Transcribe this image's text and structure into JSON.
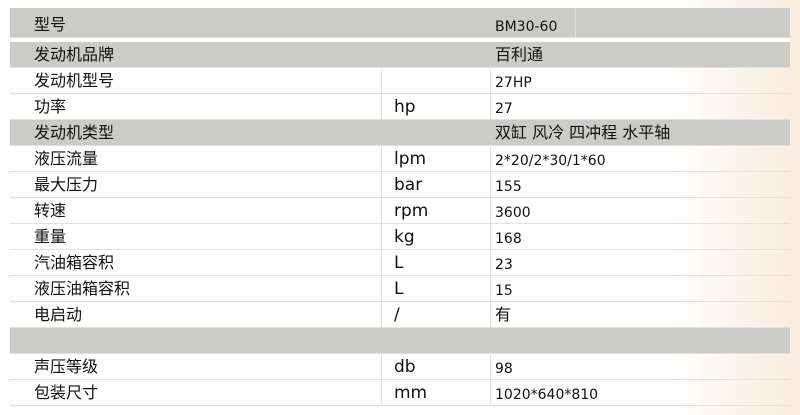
{
  "rows": [
    {
      "label": "型号",
      "unit": "",
      "value": "BM30-60",
      "style": "gray"
    },
    {
      "label": "发动机品牌",
      "unit": "",
      "value": "百利通",
      "style": "gray"
    },
    {
      "label": "发动机型号",
      "unit": "",
      "value": "27HP",
      "style": "white"
    },
    {
      "label": "功率",
      "unit": "hp",
      "value": "27",
      "style": "white"
    },
    {
      "label": "发动机类型",
      "unit": "",
      "value": "双缸 风冷 四冲程 水平轴",
      "style": "gray"
    },
    {
      "label": "液压流量",
      "unit": "lpm",
      "value": "2*20/2*30/1*60",
      "style": "white"
    },
    {
      "label": "最大压力",
      "unit": "bar",
      "value": "155",
      "style": "white"
    },
    {
      "label": "转速",
      "unit": "rpm",
      "value": "3600",
      "style": "white"
    },
    {
      "label": "重量",
      "unit": "kg",
      "value": "168",
      "style": "white"
    },
    {
      "label": "汽油箱容积",
      "unit": "L",
      "value": "23",
      "style": "white"
    },
    {
      "label": "液压油箱容积",
      "unit": "L",
      "value": "15",
      "style": "white"
    },
    {
      "label": "电启动",
      "unit": "/",
      "value": "有",
      "style": "white"
    },
    {
      "label": "",
      "unit": "",
      "value": "",
      "style": "gray"
    },
    {
      "label": "声压等级",
      "unit": "db",
      "value": "98",
      "style": "white"
    },
    {
      "label": "包装尺寸",
      "unit": "mm",
      "value": "1020*640*810",
      "style": "white"
    }
  ],
  "colors": {
    "header_gray": "#cbcbc7"
  }
}
